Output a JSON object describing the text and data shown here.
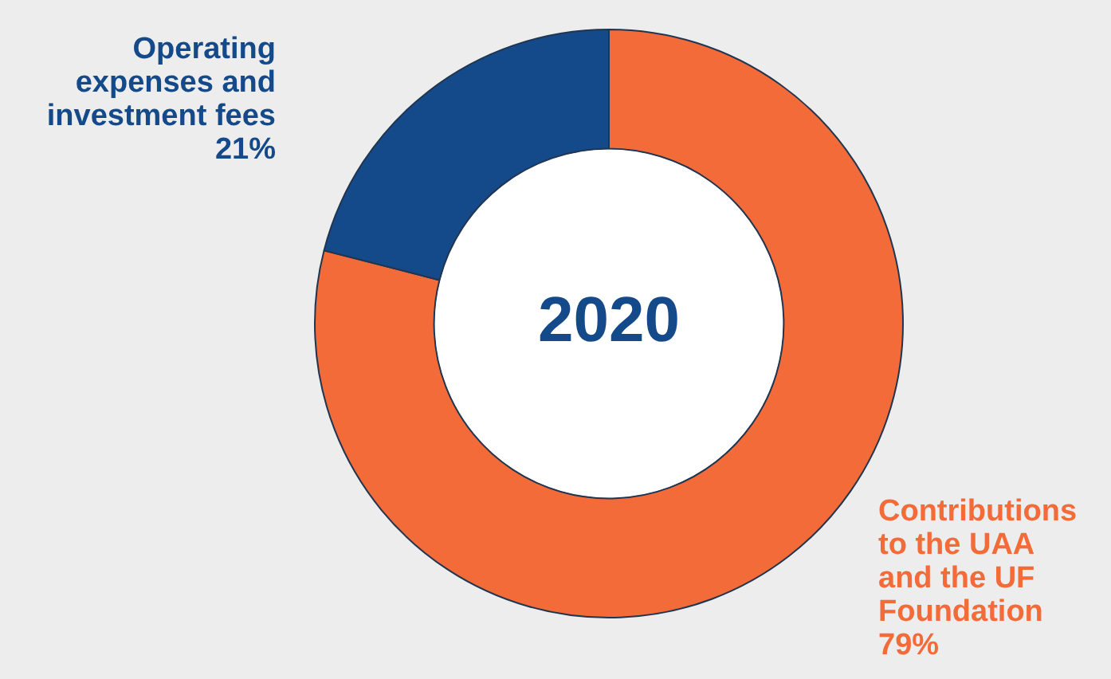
{
  "chart_data": {
    "type": "donut",
    "title": "2020",
    "categories": [
      "Contributions to the UAA and the UF Foundation",
      "Operating expenses and investment fees"
    ],
    "values": [
      79,
      21
    ],
    "colors": [
      "#f26b38",
      "#154a8a"
    ],
    "value_labels": [
      "79%",
      "21%"
    ],
    "legend": false
  }
}
